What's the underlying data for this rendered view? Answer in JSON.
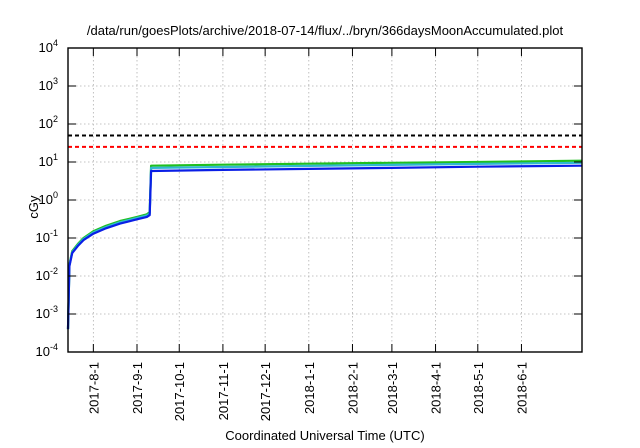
{
  "chart_data": {
    "type": "line",
    "title": "/data/run/goesPlots/archive/2018-07-14/flux/../bryn/366daysMoonAccumulated.plot",
    "xlabel": "Coordinated Universal Time (UTC)",
    "ylabel": "cGy",
    "y_scale": "log",
    "ylim": [
      0.0001,
      10000
    ],
    "y_ticks": [
      {
        "value": 0.0001,
        "base": "10",
        "exp": "-4"
      },
      {
        "value": 0.001,
        "base": "10",
        "exp": "-3"
      },
      {
        "value": 0.01,
        "base": "10",
        "exp": "-2"
      },
      {
        "value": 0.1,
        "base": "10",
        "exp": "-1"
      },
      {
        "value": 1,
        "base": "10",
        "exp": "0"
      },
      {
        "value": 10,
        "base": "10",
        "exp": "1"
      },
      {
        "value": 100,
        "base": "10",
        "exp": "2"
      },
      {
        "value": 1000,
        "base": "10",
        "exp": "3"
      },
      {
        "value": 10000,
        "base": "10",
        "exp": "4"
      }
    ],
    "xlim": [
      "2017-07-14",
      "2018-07-14"
    ],
    "x_ticks": [
      "2017-8-1",
      "2017-9-1",
      "2017-10-1",
      "2017-11-1",
      "2017-12-1",
      "2018-1-1",
      "2018-2-1",
      "2018-3-1",
      "2018-4-1",
      "2018-5-1",
      "2018-6-1"
    ],
    "grid": true,
    "legend": "none",
    "thresholds": [
      {
        "value": 50,
        "color": "#000000",
        "style": "dashed"
      },
      {
        "value": 25,
        "color": "#ff0000",
        "style": "dashed"
      }
    ],
    "series": [
      {
        "color": "#1fbf1f",
        "points": [
          [
            "2017-07-14",
            0.0004
          ],
          [
            "2017-07-15",
            0.02
          ],
          [
            "2017-07-17",
            0.045
          ],
          [
            "2017-07-21",
            0.07
          ],
          [
            "2017-07-25",
            0.1
          ],
          [
            "2017-08-01",
            0.15
          ],
          [
            "2017-08-10",
            0.21
          ],
          [
            "2017-08-20",
            0.28
          ],
          [
            "2017-09-01",
            0.36
          ],
          [
            "2017-09-08",
            0.42
          ],
          [
            "2017-09-10",
            0.48
          ],
          [
            "2017-09-11",
            8.0
          ],
          [
            "2017-11-01",
            8.5
          ],
          [
            "2018-01-01",
            9.0
          ],
          [
            "2018-03-01",
            9.5
          ],
          [
            "2018-05-01",
            10.0
          ],
          [
            "2018-07-14",
            10.8
          ]
        ]
      },
      {
        "color": "#2fb8d0",
        "points": [
          [
            "2017-07-14",
            0.0004
          ],
          [
            "2017-07-15",
            0.019
          ],
          [
            "2017-07-17",
            0.042
          ],
          [
            "2017-07-21",
            0.066
          ],
          [
            "2017-07-25",
            0.094
          ],
          [
            "2017-08-01",
            0.14
          ],
          [
            "2017-08-10",
            0.195
          ],
          [
            "2017-08-20",
            0.26
          ],
          [
            "2017-09-01",
            0.335
          ],
          [
            "2017-09-08",
            0.39
          ],
          [
            "2017-09-10",
            0.44
          ],
          [
            "2017-09-11",
            7.0
          ],
          [
            "2017-11-01",
            7.4
          ],
          [
            "2018-01-01",
            7.9
          ],
          [
            "2018-03-01",
            8.4
          ],
          [
            "2018-05-01",
            8.9
          ],
          [
            "2018-07-14",
            9.5
          ]
        ]
      },
      {
        "color": "#0a1ee6",
        "points": [
          [
            "2017-07-14",
            0.0004
          ],
          [
            "2017-07-15",
            0.018
          ],
          [
            "2017-07-17",
            0.04
          ],
          [
            "2017-07-21",
            0.062
          ],
          [
            "2017-07-25",
            0.088
          ],
          [
            "2017-08-01",
            0.13
          ],
          [
            "2017-08-10",
            0.18
          ],
          [
            "2017-08-20",
            0.24
          ],
          [
            "2017-09-01",
            0.31
          ],
          [
            "2017-09-08",
            0.36
          ],
          [
            "2017-09-10",
            0.4
          ],
          [
            "2017-09-11",
            5.8
          ],
          [
            "2017-11-01",
            6.2
          ],
          [
            "2018-01-01",
            6.6
          ],
          [
            "2018-03-01",
            7.0
          ],
          [
            "2018-05-01",
            7.5
          ],
          [
            "2018-07-14",
            8.0
          ]
        ]
      }
    ]
  }
}
